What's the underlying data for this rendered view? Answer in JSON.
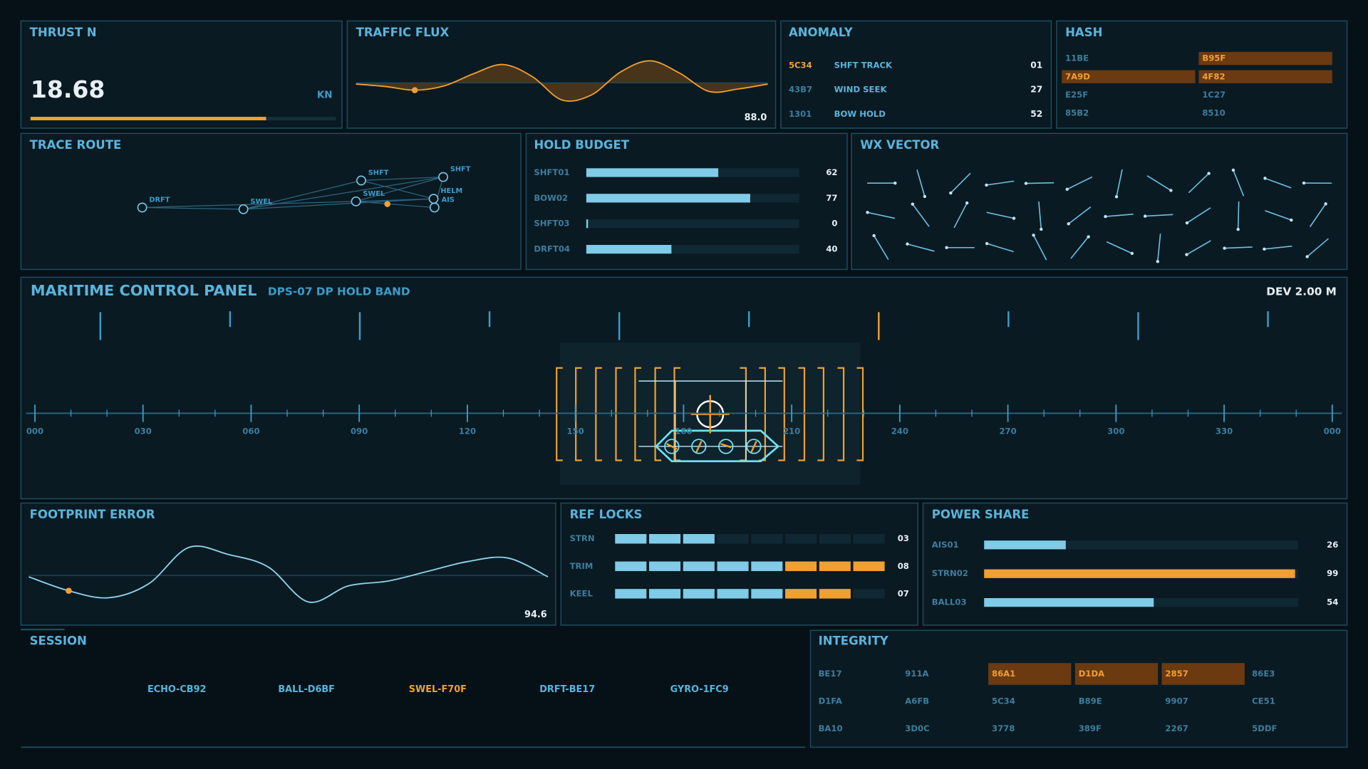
{
  "thrust": {
    "title": "THRUST N",
    "value": "18.68",
    "unit": "KN"
  },
  "traffic_flux": {
    "title": "TRAFFIC FLUX",
    "ylim": [
      0,
      100
    ],
    "values": [
      48,
      44,
      38,
      45,
      65,
      80,
      60,
      22,
      30,
      68,
      86,
      66,
      36,
      40,
      48
    ],
    "readout": "88.0"
  },
  "anomaly": {
    "title": "ANOMALY",
    "rows": [
      {
        "code": "5C34",
        "label": "SHFT TRACK",
        "value": "01",
        "highlight": true
      },
      {
        "code": "43B7",
        "label": "WIND SEEK",
        "value": "27",
        "highlight": false
      },
      {
        "code": "1301",
        "label": "BOW HOLD",
        "value": "52",
        "highlight": false
      }
    ]
  },
  "hash": {
    "title": "HASH",
    "cells": [
      {
        "text": "11BE",
        "highlight": false
      },
      {
        "text": "B95F",
        "highlight": true
      },
      {
        "text": "7A9D",
        "highlight": true
      },
      {
        "text": "4F82",
        "highlight": true
      },
      {
        "text": "E25F",
        "highlight": false
      },
      {
        "text": "1C27",
        "highlight": false
      },
      {
        "text": "85B2",
        "highlight": false
      },
      {
        "text": "8510",
        "highlight": false
      }
    ]
  },
  "trace_route": {
    "title": "TRACE ROUTE",
    "nodes": [
      "DRFT",
      "SWEL",
      "SHFT",
      "SHFT",
      "SWEL",
      "HELM",
      "AIS"
    ]
  },
  "hold_budget": {
    "title": "HOLD BUDGET",
    "xlim": [
      0,
      100
    ],
    "rows": [
      {
        "label": "SHFT01",
        "value": 62
      },
      {
        "label": "BOW02",
        "value": 77
      },
      {
        "label": "SHFT03",
        "value": 0
      },
      {
        "label": "DRFT04",
        "value": 40
      }
    ]
  },
  "wx_vector": {
    "title": "WX VECTOR"
  },
  "control": {
    "title": "MARITIME CONTROL PANEL",
    "subtitle": "DPS-07 DP HOLD BAND",
    "deviation": "DEV 2.00 M",
    "heading_labels": [
      "000",
      "030",
      "060",
      "090",
      "120",
      "150",
      "180",
      "210",
      "240",
      "270",
      "300",
      "330",
      "000"
    ]
  },
  "footprint_error": {
    "title": "FOOTPRINT ERROR",
    "ylim": [
      0,
      100
    ],
    "values": [
      48,
      28,
      18,
      38,
      90,
      80,
      62,
      12,
      35,
      42,
      56,
      70,
      75,
      48
    ],
    "readout": "94.6"
  },
  "ref_locks": {
    "title": "REF LOCKS",
    "xlim": [
      0,
      8
    ],
    "warn_above": 5,
    "rows": [
      {
        "label": "STRN",
        "value": 3,
        "value_label": "03"
      },
      {
        "label": "TRIM",
        "value": 8,
        "value_label": "08"
      },
      {
        "label": "KEEL",
        "value": 7,
        "value_label": "07"
      }
    ]
  },
  "power_share": {
    "title": "POWER SHARE",
    "xlim": [
      0,
      100
    ],
    "rows": [
      {
        "label": "AIS01",
        "value": 26,
        "color": "#7fcbe8"
      },
      {
        "label": "STRN02",
        "value": 99,
        "color": "#f0a030"
      },
      {
        "label": "BALL03",
        "value": 54,
        "color": "#7fcbe8"
      }
    ]
  },
  "session": {
    "title": "SESSION",
    "items": [
      {
        "text": "ECHO-CB92",
        "highlight": false
      },
      {
        "text": "BALL-D6BF",
        "highlight": false
      },
      {
        "text": "SWEL-F70F",
        "highlight": true
      },
      {
        "text": "DRFT-BE17",
        "highlight": false
      },
      {
        "text": "GYRO-1FC9",
        "highlight": false
      }
    ]
  },
  "integrity": {
    "title": "INTEGRITY",
    "cells": [
      {
        "text": "BE17",
        "highlight": false
      },
      {
        "text": "911A",
        "highlight": false
      },
      {
        "text": "86A1",
        "highlight": true
      },
      {
        "text": "D1DA",
        "highlight": true
      },
      {
        "text": "2857",
        "highlight": true
      },
      {
        "text": "86E3",
        "highlight": false
      },
      {
        "text": "D1FA",
        "highlight": false
      },
      {
        "text": "A6FB",
        "highlight": false
      },
      {
        "text": "5C34",
        "highlight": false
      },
      {
        "text": "B89E",
        "highlight": false
      },
      {
        "text": "9907",
        "highlight": false
      },
      {
        "text": "CE51",
        "highlight": false
      },
      {
        "text": "BA10",
        "highlight": false
      },
      {
        "text": "3D0C",
        "highlight": false
      },
      {
        "text": "3778",
        "highlight": false
      },
      {
        "text": "389F",
        "highlight": false
      },
      {
        "text": "2267",
        "highlight": false
      },
      {
        "text": "5DDF",
        "highlight": false
      }
    ]
  }
}
